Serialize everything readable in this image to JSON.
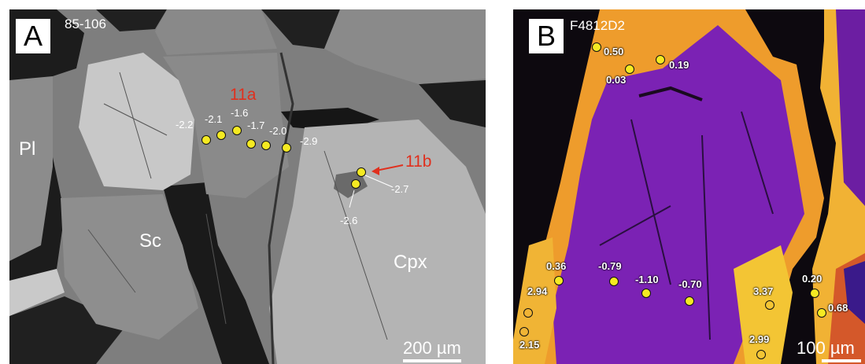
{
  "panel_a": {
    "letter": "A",
    "sample_id": "85-106",
    "phases": {
      "pl": "Pl",
      "sc": "Sc",
      "cpx": "Cpx"
    },
    "areas": {
      "a11a": "11a",
      "a11b": "11b"
    },
    "spot_values": [
      "-2.2",
      "-2.1",
      "-1.6",
      "-1.7",
      "-2.0",
      "-2.9",
      "-2.7",
      "-2.6"
    ],
    "scale_bar": "200 µm"
  },
  "panel_b": {
    "letter": "B",
    "sample_id": "F4812D2",
    "spot_values": [
      "0.50",
      "0.03",
      "0.19",
      "0.36",
      "2.94",
      "2.15",
      "-0.79",
      "-1.10",
      "-0.70",
      "3.37",
      "2.99",
      "0.20",
      "0.68"
    ],
    "scale_bar": "100 µm"
  },
  "colors": {
    "marker": "#f5ea22",
    "annotation": "#e0301e",
    "core": "#7a1fb0",
    "rim": "#f0a030"
  }
}
